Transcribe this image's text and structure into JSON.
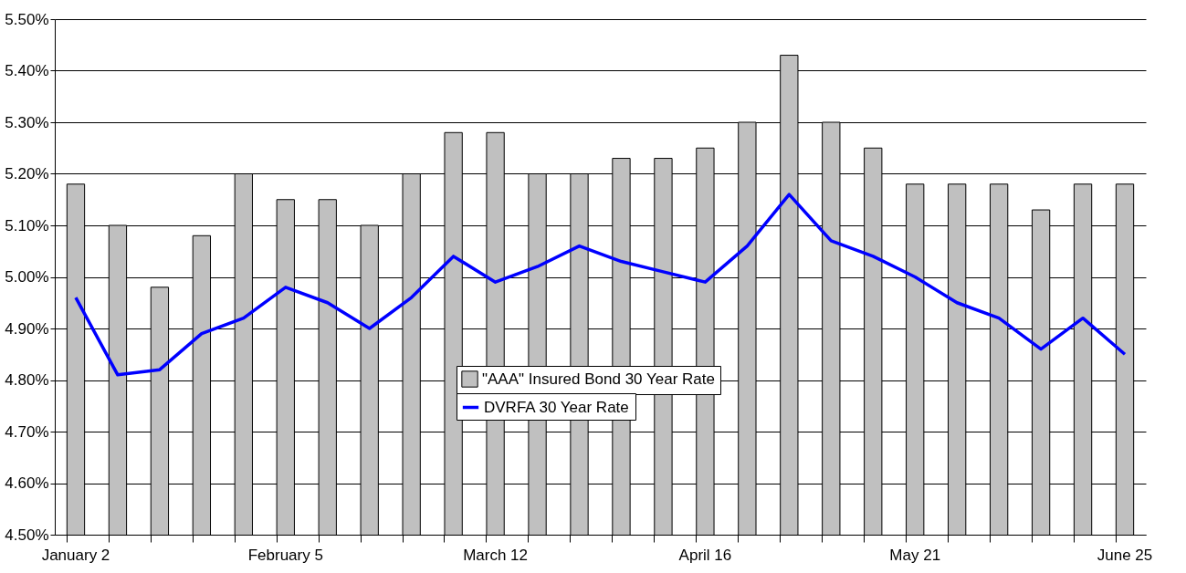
{
  "chart_data": {
    "type": "bar",
    "categories": [
      "January 2",
      null,
      null,
      null,
      null,
      "February 5",
      null,
      null,
      null,
      null,
      "March 12",
      null,
      null,
      null,
      null,
      "April 16",
      null,
      null,
      null,
      null,
      "May 21",
      null,
      null,
      null,
      null,
      "June 25"
    ],
    "series": [
      {
        "name": "\"AAA\" Insured Bond 30 Year Rate",
        "color": "#c0c0c0",
        "values": [
          5.18,
          5.1,
          4.98,
          5.08,
          5.2,
          5.15,
          5.15,
          5.1,
          5.2,
          5.28,
          5.28,
          5.2,
          5.2,
          5.23,
          5.23,
          5.25,
          5.3,
          5.43,
          5.3,
          5.25,
          5.18,
          5.18,
          5.18,
          5.13,
          5.18,
          5.18
        ]
      },
      {
        "name": "DVRFA 30 Year Rate",
        "type": "line",
        "color": "#0000ff",
        "values": [
          4.96,
          4.81,
          4.82,
          4.89,
          4.92,
          4.98,
          4.95,
          4.9,
          4.96,
          5.04,
          4.99,
          5.02,
          5.06,
          5.03,
          5.01,
          4.99,
          5.06,
          5.16,
          5.07,
          5.04,
          5.0,
          4.95,
          4.92,
          4.86,
          4.92,
          4.85
        ]
      }
    ],
    "ylim": [
      4.5,
      5.5
    ],
    "yticks": [
      {
        "value": 4.5,
        "label": "4.50%"
      },
      {
        "value": 4.6,
        "label": "4.60%"
      },
      {
        "value": 4.7,
        "label": "4.70%"
      },
      {
        "value": 4.8,
        "label": "4.80%"
      },
      {
        "value": 4.9,
        "label": "4.90%"
      },
      {
        "value": 5.0,
        "label": "5.00%"
      },
      {
        "value": 5.1,
        "label": "5.10%"
      },
      {
        "value": 5.2,
        "label": "5.20%"
      },
      {
        "value": 5.3,
        "label": "5.30%"
      },
      {
        "value": 5.4,
        "label": "5.40%"
      },
      {
        "value": 5.5,
        "label": "5.50%"
      }
    ],
    "grid": "y",
    "legend": "bottom",
    "marker": "none",
    "line_style": "solid"
  }
}
